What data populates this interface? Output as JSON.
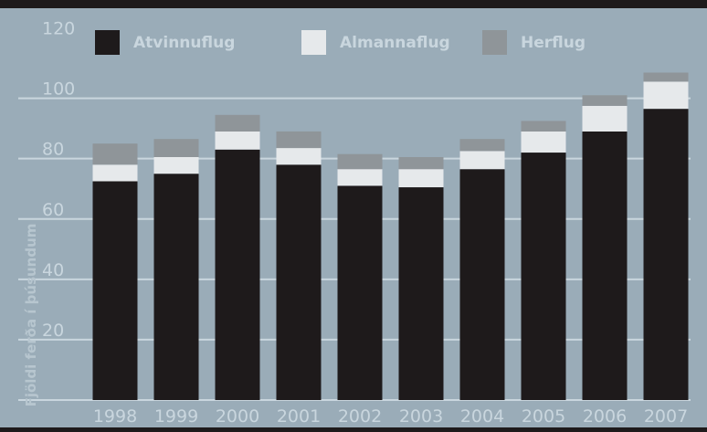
{
  "chart_data": {
    "type": "bar",
    "stacked": true,
    "title": "",
    "xlabel": "",
    "ylabel": "Fjöldi ferða í þúsundum",
    "categories": [
      "1998",
      "1999",
      "2000",
      "2001",
      "2002",
      "2003",
      "2004",
      "2005",
      "2006",
      "2007"
    ],
    "series": [
      {
        "name": "Atvinnuflug",
        "color": "#1e1a1b",
        "values": [
          72.5,
          75,
          83,
          78,
          71,
          70.5,
          76.5,
          82,
          89,
          96.5
        ]
      },
      {
        "name": "Almannaflug",
        "color": "#e6e9eb",
        "values": [
          5.5,
          5.5,
          6,
          5.5,
          5.5,
          6,
          6,
          7,
          8.5,
          9
        ]
      },
      {
        "name": "Herflug",
        "color": "#8f9599",
        "values": [
          7,
          6,
          5.5,
          5.5,
          5,
          4,
          4,
          3.5,
          3.5,
          3
        ]
      }
    ],
    "yticks": [
      20,
      40,
      60,
      80,
      100,
      120
    ],
    "ylim": [
      0,
      125
    ],
    "grid": true,
    "legend_position": "top"
  }
}
